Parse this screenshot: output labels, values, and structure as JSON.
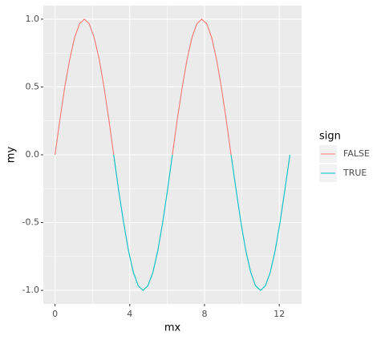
{
  "chart_data": {
    "type": "line",
    "x_label": "mx",
    "y_label": "my",
    "legend_title": "sign",
    "x": [
      0,
      0.26,
      0.52,
      0.79,
      1.05,
      1.31,
      1.57,
      1.83,
      2.09,
      2.36,
      2.62,
      2.88,
      3.14,
      3.4,
      3.67,
      3.93,
      4.19,
      4.45,
      4.71,
      4.97,
      5.24,
      5.5,
      5.76,
      6.02,
      6.28,
      6.54,
      6.81,
      7.07,
      7.33,
      7.59,
      7.85,
      8.12,
      8.38,
      8.64,
      8.9,
      9.16,
      9.42,
      9.69,
      9.95,
      10.21,
      10.47,
      10.73,
      11.0,
      11.26,
      11.52,
      11.78,
      12.04,
      12.3,
      12.57
    ],
    "series": [
      {
        "name": "FALSE",
        "color": "#f8766d",
        "values": [
          0,
          0.259,
          0.5,
          0.707,
          0.866,
          0.966,
          1,
          0.966,
          0.866,
          0.707,
          0.5,
          0.259,
          0,
          null,
          null,
          null,
          null,
          null,
          null,
          null,
          null,
          null,
          null,
          null,
          0,
          0.259,
          0.5,
          0.707,
          0.866,
          0.966,
          1,
          0.966,
          0.866,
          0.707,
          0.5,
          0.259,
          0,
          null,
          null,
          null,
          null,
          null,
          null,
          null,
          null,
          null,
          null,
          null,
          null
        ]
      },
      {
        "name": "TRUE",
        "color": "#00bfc4",
        "values": [
          null,
          null,
          null,
          null,
          null,
          null,
          null,
          null,
          null,
          null,
          null,
          null,
          0,
          -0.259,
          -0.5,
          -0.707,
          -0.866,
          -0.966,
          -1,
          -0.966,
          -0.866,
          -0.707,
          -0.5,
          -0.259,
          0,
          null,
          null,
          null,
          null,
          null,
          null,
          null,
          null,
          null,
          null,
          null,
          0,
          -0.259,
          -0.5,
          -0.707,
          -0.866,
          -0.966,
          -1,
          -0.966,
          -0.866,
          -0.707,
          -0.5,
          -0.259,
          0
        ]
      }
    ],
    "xlim": [
      -0.628,
      13.195
    ],
    "ylim": [
      -1.1,
      1.1
    ],
    "xticks": [
      0,
      4,
      8,
      12
    ],
    "yticks": [
      {
        "value": -1,
        "label": "-1.0"
      },
      {
        "value": -0.5,
        "label": "-0.5"
      },
      {
        "value": 0,
        "label": "0.0"
      },
      {
        "value": 0.5,
        "label": "0.5"
      },
      {
        "value": 1,
        "label": "1.0"
      }
    ],
    "grid": true
  }
}
